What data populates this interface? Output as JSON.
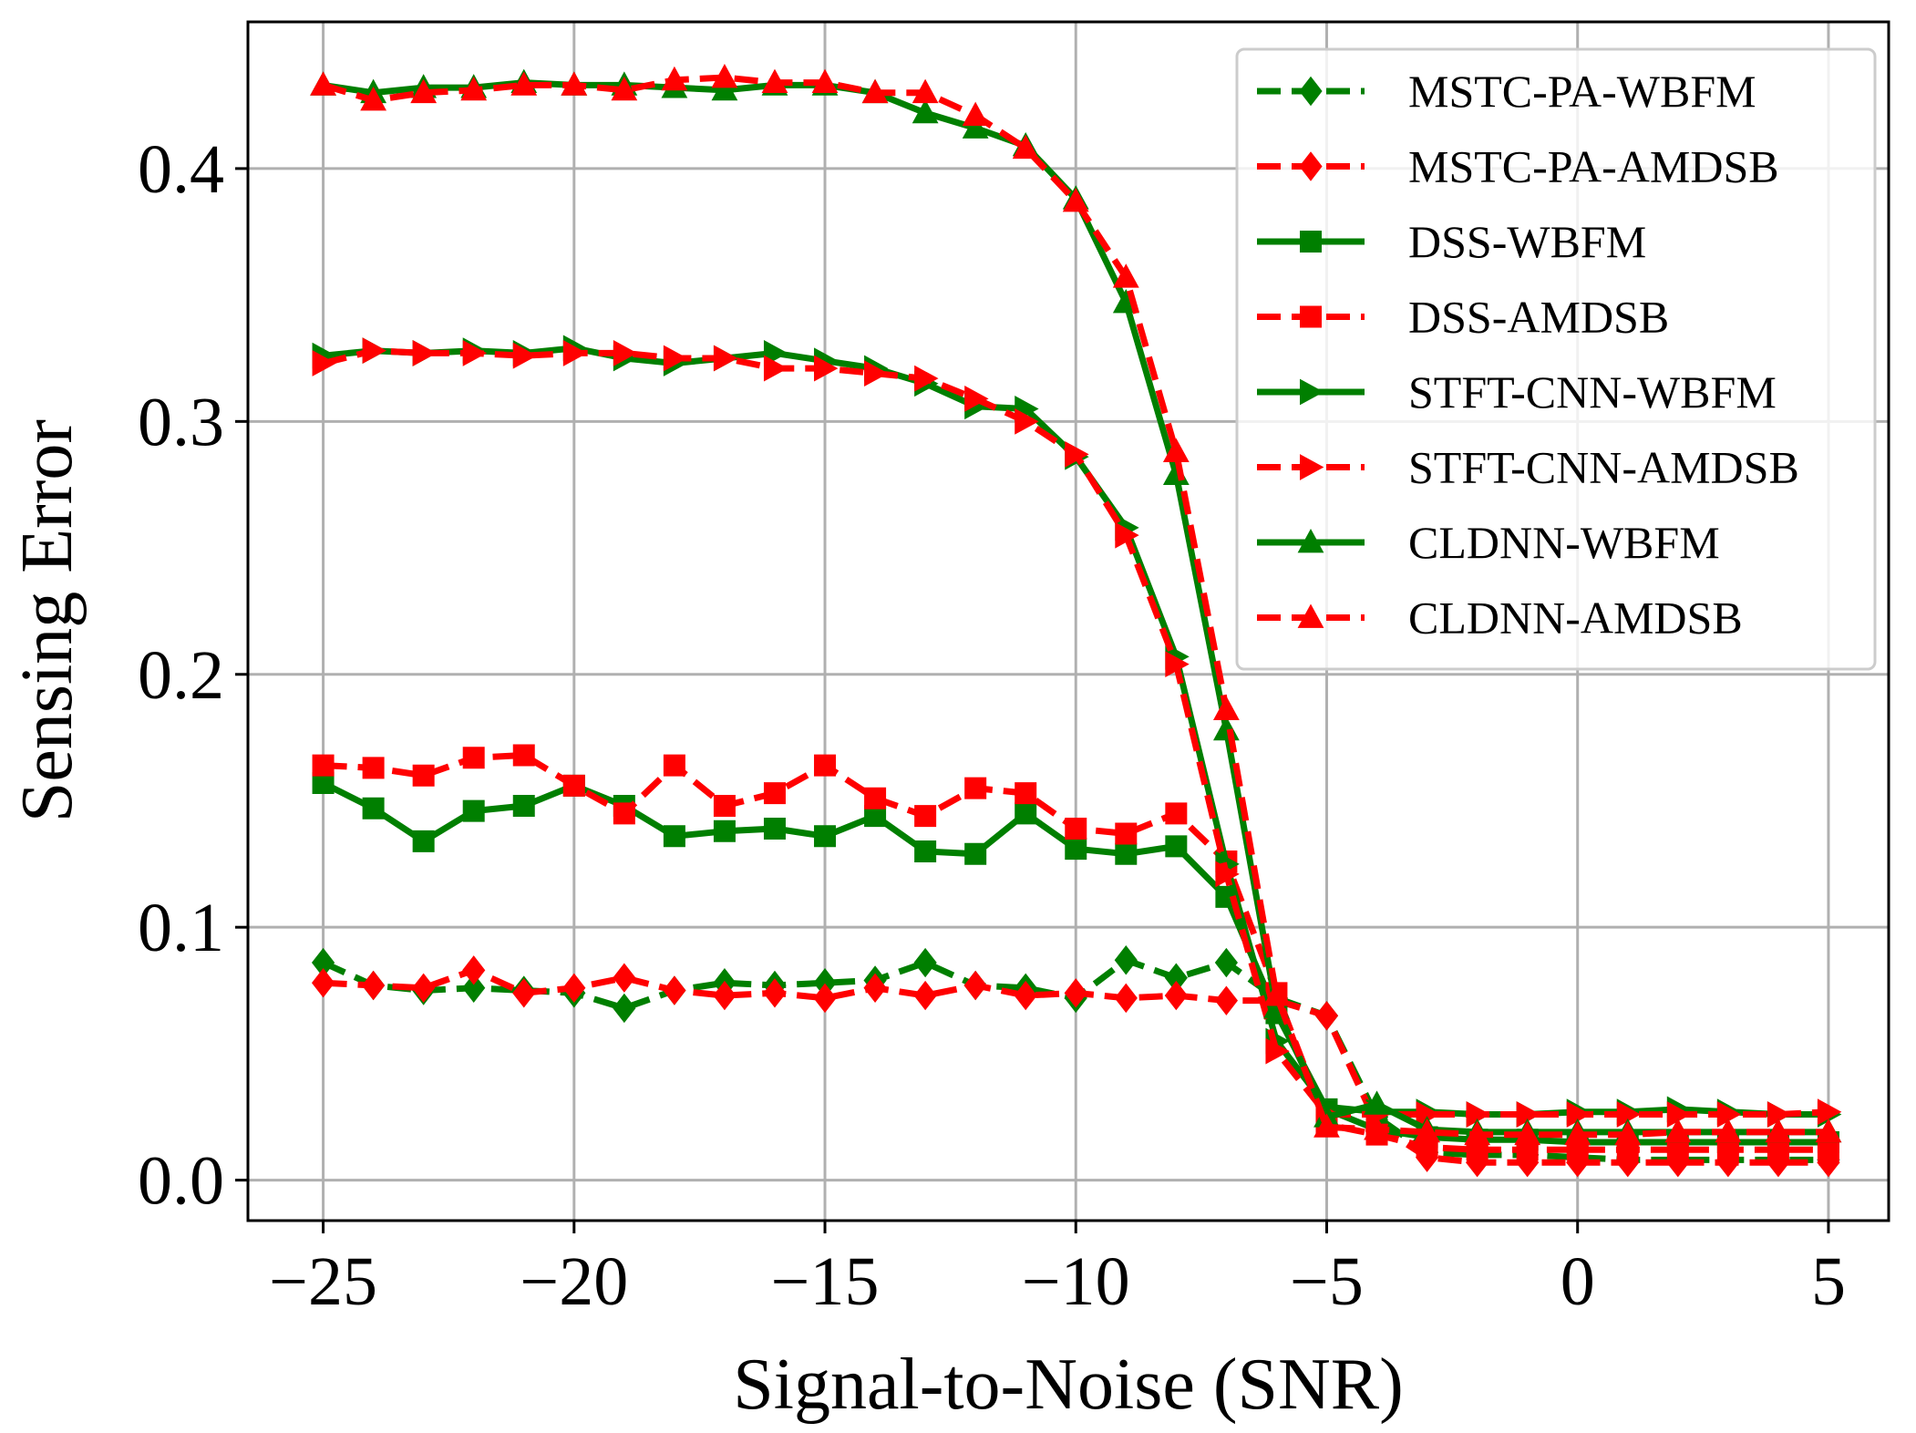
{
  "chart_data": {
    "type": "line",
    "title": "",
    "xlabel": "Signal-to-Noise (SNR)",
    "ylabel": "Sensing Error",
    "xlim": [
      -26.5,
      6.2
    ],
    "ylim": [
      -0.016,
      0.458
    ],
    "grid": true,
    "legend_position": "top-right",
    "x_ticks": [
      -25,
      -20,
      -15,
      -10,
      -5,
      0,
      5
    ],
    "x_tick_labels": [
      "−25",
      "−20",
      "−15",
      "−10",
      "−5",
      "0",
      "5"
    ],
    "y_ticks": [
      0.0,
      0.1,
      0.2,
      0.3,
      0.4
    ],
    "y_tick_labels": [
      "0.0",
      "0.1",
      "0.2",
      "0.3",
      "0.4"
    ],
    "x": [
      -25,
      -24,
      -23,
      -22,
      -21,
      -20,
      -19,
      -18,
      -17,
      -16,
      -15,
      -14,
      -13,
      -12,
      -11,
      -10,
      -9,
      -8,
      -7,
      -6,
      -5,
      -4,
      -3,
      -2,
      -1,
      0,
      1,
      2,
      3,
      4,
      5
    ],
    "series": [
      {
        "name": "MSTC-PA-WBFM",
        "color": "#007f00",
        "dashed": true,
        "marker": "diamond",
        "values": [
          0.086,
          0.077,
          0.075,
          0.076,
          0.075,
          0.074,
          0.068,
          0.075,
          0.078,
          0.077,
          0.078,
          0.079,
          0.086,
          0.077,
          0.076,
          0.072,
          0.087,
          0.08,
          0.086,
          0.072,
          0.065,
          0.025,
          0.011,
          0.01,
          0.01,
          0.009,
          0.008,
          0.008,
          0.008,
          0.008,
          0.008
        ]
      },
      {
        "name": "MSTC-PA-AMDSB",
        "color": "#ff0000",
        "dashed": true,
        "marker": "diamond",
        "values": [
          0.078,
          0.077,
          0.076,
          0.083,
          0.074,
          0.076,
          0.08,
          0.075,
          0.073,
          0.074,
          0.072,
          0.076,
          0.073,
          0.077,
          0.073,
          0.074,
          0.072,
          0.073,
          0.071,
          0.071,
          0.065,
          0.022,
          0.009,
          0.007,
          0.007,
          0.007,
          0.007,
          0.007,
          0.007,
          0.007,
          0.007
        ]
      },
      {
        "name": "DSS-WBFM",
        "color": "#007f00",
        "dashed": false,
        "marker": "square",
        "values": [
          0.157,
          0.147,
          0.134,
          0.146,
          0.148,
          0.156,
          0.148,
          0.136,
          0.138,
          0.139,
          0.136,
          0.144,
          0.13,
          0.129,
          0.145,
          0.131,
          0.129,
          0.132,
          0.112,
          0.066,
          0.028,
          0.02,
          0.017,
          0.016,
          0.016,
          0.015,
          0.015,
          0.015,
          0.015,
          0.015,
          0.015
        ]
      },
      {
        "name": "DSS-AMDSB",
        "color": "#ff0000",
        "dashed": true,
        "marker": "square",
        "values": [
          0.164,
          0.163,
          0.16,
          0.167,
          0.168,
          0.156,
          0.145,
          0.164,
          0.148,
          0.153,
          0.164,
          0.151,
          0.144,
          0.155,
          0.153,
          0.139,
          0.137,
          0.145,
          0.126,
          0.074,
          0.022,
          0.018,
          0.013,
          0.012,
          0.012,
          0.012,
          0.012,
          0.012,
          0.012,
          0.012,
          0.012
        ]
      },
      {
        "name": "STFT-CNN-WBFM",
        "color": "#007f00",
        "dashed": false,
        "marker": "triangle-right",
        "values": [
          0.326,
          0.328,
          0.327,
          0.328,
          0.327,
          0.329,
          0.325,
          0.323,
          0.325,
          0.327,
          0.324,
          0.321,
          0.315,
          0.306,
          0.305,
          0.286,
          0.258,
          0.207,
          0.125,
          0.055,
          0.029,
          0.027,
          0.027,
          0.026,
          0.026,
          0.027,
          0.027,
          0.028,
          0.027,
          0.026,
          0.026
        ]
      },
      {
        "name": "STFT-CNN-AMDSB",
        "color": "#ff0000",
        "dashed": true,
        "marker": "triangle-right",
        "values": [
          0.323,
          0.328,
          0.327,
          0.327,
          0.326,
          0.327,
          0.327,
          0.325,
          0.325,
          0.321,
          0.321,
          0.319,
          0.317,
          0.309,
          0.3,
          0.287,
          0.255,
          0.204,
          0.121,
          0.051,
          0.026,
          0.026,
          0.026,
          0.026,
          0.026,
          0.026,
          0.026,
          0.026,
          0.026,
          0.026,
          0.027
        ]
      },
      {
        "name": "CLDNN-WBFM",
        "color": "#007f00",
        "dashed": false,
        "marker": "triangle-up",
        "values": [
          0.433,
          0.43,
          0.432,
          0.432,
          0.434,
          0.433,
          0.433,
          0.432,
          0.431,
          0.433,
          0.433,
          0.43,
          0.422,
          0.416,
          0.409,
          0.388,
          0.347,
          0.279,
          0.178,
          0.068,
          0.025,
          0.03,
          0.02,
          0.019,
          0.019,
          0.019,
          0.019,
          0.019,
          0.019,
          0.019,
          0.019
        ]
      },
      {
        "name": "CLDNN-AMDSB",
        "color": "#ff0000",
        "dashed": true,
        "marker": "triangle-up",
        "values": [
          0.433,
          0.427,
          0.43,
          0.431,
          0.433,
          0.433,
          0.431,
          0.435,
          0.436,
          0.434,
          0.434,
          0.43,
          0.43,
          0.421,
          0.408,
          0.387,
          0.357,
          0.288,
          0.186,
          0.073,
          0.021,
          0.02,
          0.019,
          0.018,
          0.018,
          0.018,
          0.018,
          0.019,
          0.019,
          0.019,
          0.019
        ]
      }
    ]
  }
}
